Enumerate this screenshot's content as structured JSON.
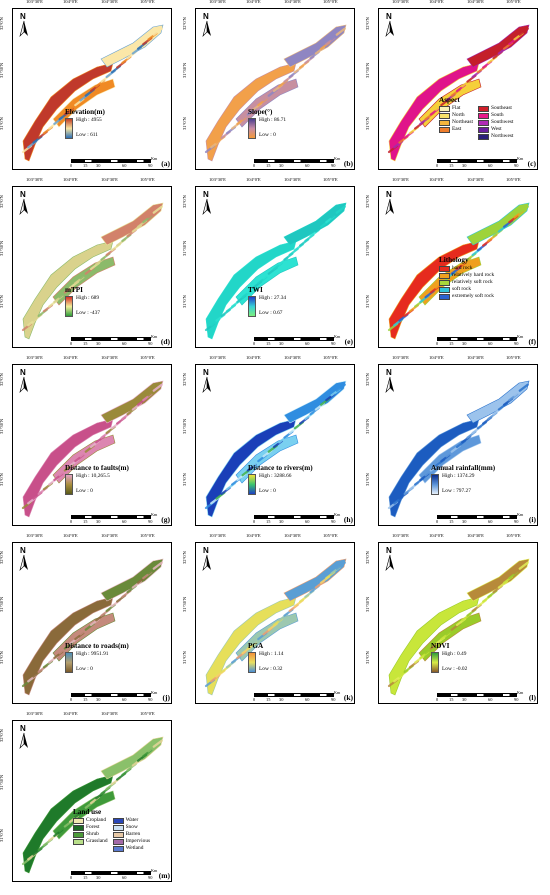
{
  "axes": {
    "top": [
      "103°30'E",
      "104°0'E",
      "104°30'E",
      "105°0'E"
    ],
    "bottom": [
      "103°30'E",
      "104°0'E",
      "104°30'E",
      "105°0'E"
    ],
    "left": [
      "32°0'N",
      "31°30'N",
      "31°0'N"
    ],
    "right": [
      "32°0'N",
      "31°30'N",
      "31°0'N"
    ]
  },
  "north_label": "N",
  "scale": {
    "ticks": [
      "0",
      "15",
      "30",
      "60",
      "90"
    ],
    "unit": "Km"
  },
  "panels": [
    {
      "id": "elevation",
      "label": "(a)",
      "type": "ramp",
      "title": "Elevation(m)",
      "high": "High : 4955",
      "low": "Low : 611",
      "colors": [
        "#c0392b",
        "#f08a24",
        "#fbe7a8",
        "#6aa3d0",
        "#2a6db0"
      ],
      "ramp": [
        "#c23b22",
        "#f7e5a1",
        "#2c70b6"
      ]
    },
    {
      "id": "slope",
      "label": "(b)",
      "type": "ramp",
      "title": "Slope(°)",
      "high": "High : 86.71",
      "low": "Low : 0",
      "colors": [
        "#f2a04a",
        "#c78fa0",
        "#8f86c2",
        "#e9b77e"
      ],
      "ramp": [
        "#4b3d8f",
        "#c98ca6",
        "#f39a3a"
      ]
    },
    {
      "id": "aspect",
      "label": "(c)",
      "type": "cat",
      "title": "Aspect",
      "colors": [
        "#e0148a",
        "#f5d03a",
        "#c41f2b",
        "#a52ab0",
        "#f07b2c"
      ],
      "classes": [
        {
          "name": "Flat",
          "color": "#f8f2b8"
        },
        {
          "name": "Southeast",
          "color": "#d0202a"
        },
        {
          "name": "North",
          "color": "#f7e26b"
        },
        {
          "name": "South",
          "color": "#e7198a"
        },
        {
          "name": "Northeast",
          "color": "#f6b53c"
        },
        {
          "name": "Southwest",
          "color": "#b02ab4"
        },
        {
          "name": "East",
          "color": "#ee7d2c"
        },
        {
          "name": "West",
          "color": "#6a1e9e"
        },
        {
          "name": "",
          "color": ""
        },
        {
          "name": "Northwest",
          "color": "#2b1f7a"
        }
      ]
    },
    {
      "id": "mtpi",
      "label": "(d)",
      "type": "ramp",
      "title": "mTPI",
      "high": "High : 689",
      "low": "Low : -437",
      "colors": [
        "#d9d28c",
        "#8cba6a",
        "#d2826a",
        "#e8e29a"
      ],
      "ramp": [
        "#d62f27",
        "#f2ee9a",
        "#2f9e3a"
      ]
    },
    {
      "id": "twi",
      "label": "(e)",
      "type": "ramp",
      "title": "TWI",
      "high": "High : 27.34",
      "low": "Low : 0.67",
      "colors": [
        "#22d6c8",
        "#2de2d2",
        "#1fc7c0"
      ],
      "ramp": [
        "#1f3cc8",
        "#37d2d6",
        "#7ef07e"
      ]
    },
    {
      "id": "lithology",
      "label": "(f)",
      "type": "cat1",
      "title": "Lithology",
      "colors": [
        "#e62b1e",
        "#f0a01f",
        "#9ed33b",
        "#2ec7d9",
        "#2b5fcf"
      ],
      "classes": [
        {
          "name": "hard rock",
          "color": "#e62b1e"
        },
        {
          "name": "relatively hard rock",
          "color": "#f0a01f"
        },
        {
          "name": "relatively soft rock",
          "color": "#a8d63a"
        },
        {
          "name": "soft rock",
          "color": "#31c4d8"
        },
        {
          "name": "extremely soft rock",
          "color": "#2b62cf"
        }
      ]
    },
    {
      "id": "faults",
      "label": "(g)",
      "type": "ramp",
      "title": "Distance to faults(m)",
      "high": "High : 10,265.5",
      "low": "Low : 0",
      "colors": [
        "#c8508a",
        "#dc86b0",
        "#9a8a3a",
        "#e9b3cf"
      ],
      "ramp": [
        "#e4a2c6",
        "#a98f3d",
        "#5a5a1a"
      ]
    },
    {
      "id": "rivers",
      "label": "(h)",
      "type": "ramp",
      "title": "Distance to rivers(m)",
      "high": "High : 3288.66",
      "low": "Low : 0",
      "colors": [
        "#1a3fb8",
        "#7ad0f0",
        "#2f8de0",
        "#c9ecf8",
        "#3fb14a"
      ],
      "ramp": [
        "#f0e23a",
        "#3ac46e",
        "#1e3fc2"
      ]
    },
    {
      "id": "rainfall",
      "label": "(i)",
      "type": "ramp",
      "title": "Annual rainfall(mm)",
      "high": "High : 1374.29",
      "low": "Low : 797.27",
      "colors": [
        "#1c5cc0",
        "#5e98da",
        "#9cc3ec",
        "#2a72cc"
      ],
      "ramp": [
        "#0b2d8f",
        "#5a93d8",
        "#e8f1fb"
      ]
    },
    {
      "id": "roads",
      "label": "(j)",
      "type": "ramp",
      "title": "Distance to roads(m)",
      "high": "High : 9951.91",
      "low": "Low : 0",
      "colors": [
        "#8a6a3a",
        "#c48a7c",
        "#6a8a3a",
        "#e7b8c0"
      ],
      "ramp": [
        "#4d8fb8",
        "#b5a070",
        "#7a5a2a"
      ]
    },
    {
      "id": "pga",
      "label": "(k)",
      "type": "ramp",
      "title": "PGA",
      "high": "High : 1.14",
      "low": "Low : 0.32",
      "colors": [
        "#e6df5a",
        "#9cc8b0",
        "#5a9ed4",
        "#f0a070",
        "#f6d36a"
      ],
      "ramp": [
        "#f2903a",
        "#e9e060",
        "#4c8fd4"
      ]
    },
    {
      "id": "ndvi",
      "label": "(l)",
      "type": "ramp",
      "title": "NDVI",
      "high": "High : 0.49",
      "low": "Low : -0.02",
      "colors": [
        "#c8e63a",
        "#9acb2a",
        "#b78a3a",
        "#e2f05a"
      ],
      "ramp": [
        "#2e9e38",
        "#d8ec48",
        "#8a5a2a"
      ]
    },
    {
      "id": "landuse",
      "label": "(m)",
      "type": "cat",
      "title": "Land use",
      "colors": [
        "#1f7a2a",
        "#3f9a3a",
        "#8ac06a",
        "#e6d59a"
      ],
      "classes": [
        {
          "name": "Cropland",
          "color": "#f1e8b0"
        },
        {
          "name": "Water",
          "color": "#2a47b8"
        },
        {
          "name": "Forest",
          "color": "#1c6a24"
        },
        {
          "name": "Snow",
          "color": "#cfe3f4"
        },
        {
          "name": "Shrub",
          "color": "#4c9a3a"
        },
        {
          "name": "Barren",
          "color": "#e8c9a6"
        },
        {
          "name": "Grassland",
          "color": "#b9df8a"
        },
        {
          "name": "Impervious",
          "color": "#a36aa8"
        },
        {
          "name": "",
          "color": ""
        },
        {
          "name": "Wetland",
          "color": "#5a7ad0"
        }
      ]
    }
  ]
}
